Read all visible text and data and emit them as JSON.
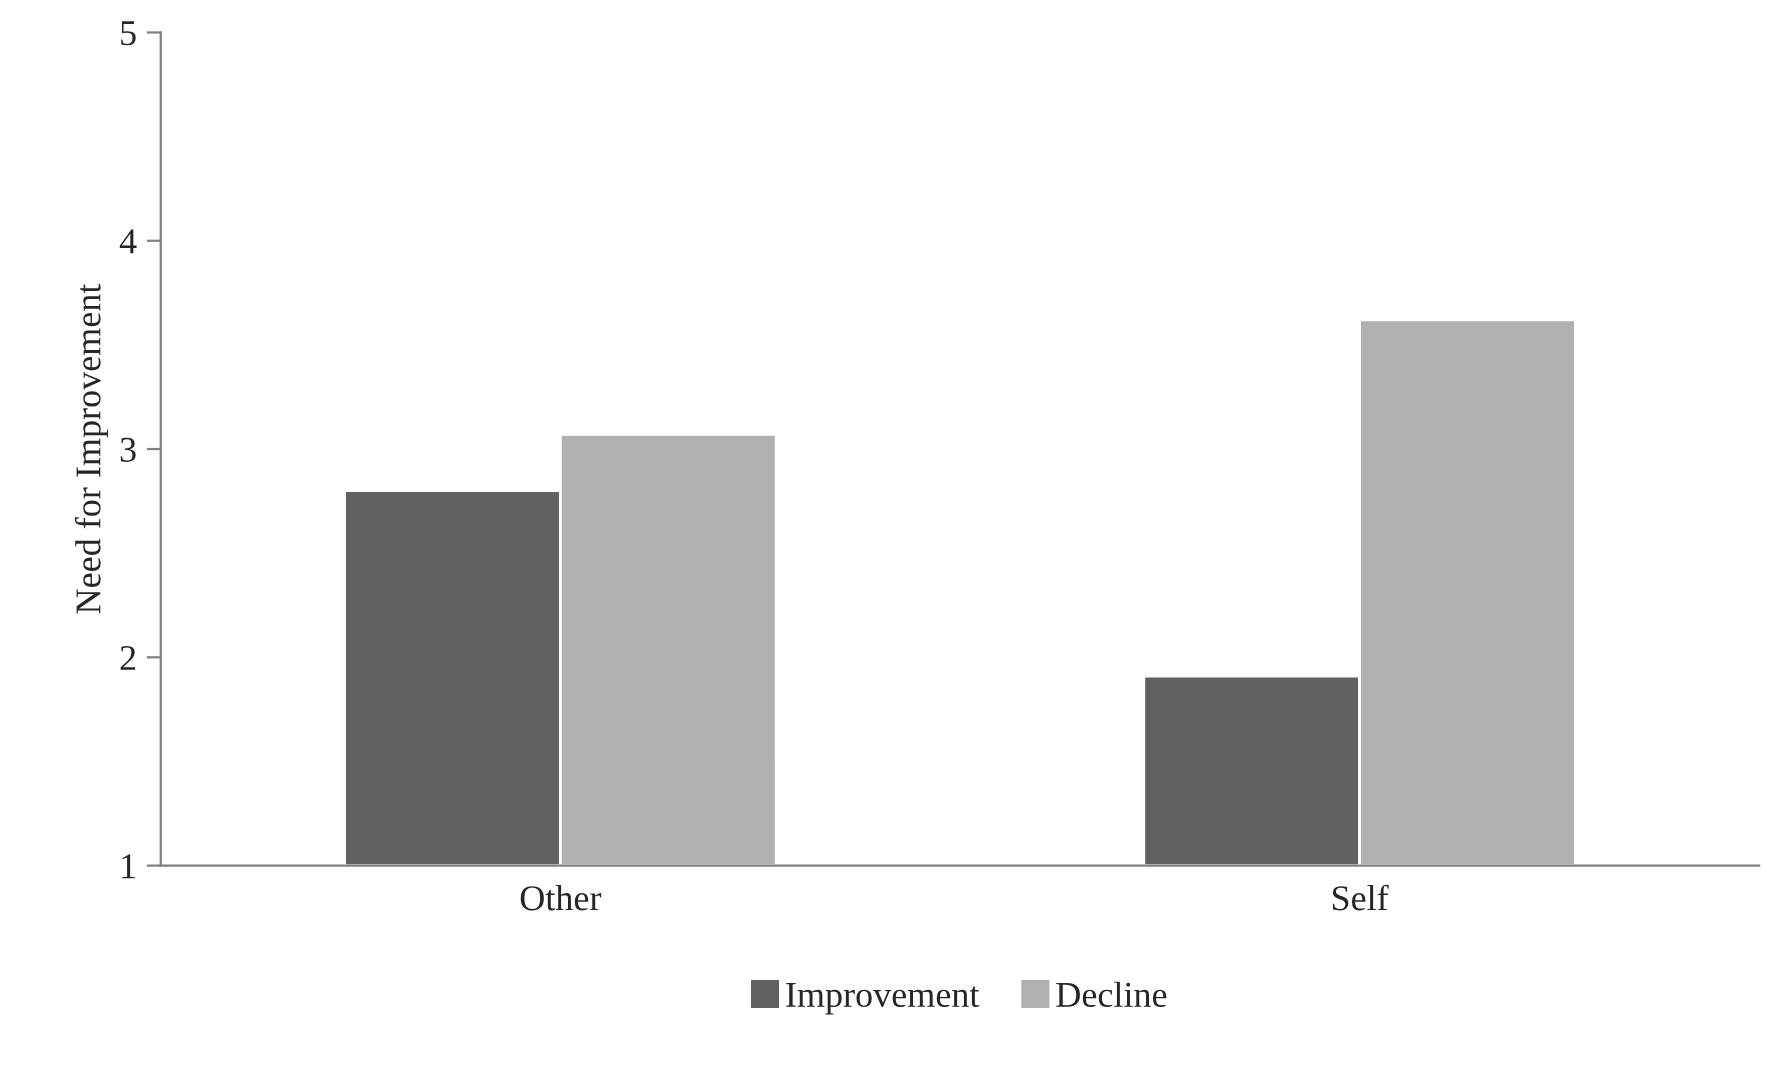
{
  "chart_data": {
    "type": "bar",
    "ylabel": "Need for Improvement",
    "categories": [
      "Other",
      "Self"
    ],
    "series": [
      {
        "name": "Improvement",
        "color": "#616161",
        "values": [
          2.8,
          1.91
        ]
      },
      {
        "name": "Decline",
        "color": "#b0b0b0",
        "values": [
          3.07,
          3.62
        ]
      }
    ],
    "ylim": [
      1,
      5
    ],
    "yticks": [
      1,
      2,
      3,
      4,
      5
    ],
    "grid": false,
    "legend": "bottom"
  }
}
